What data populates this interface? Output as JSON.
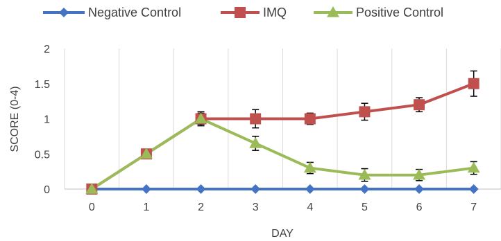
{
  "chart_data": {
    "type": "line",
    "title": "",
    "xlabel": "DAY",
    "ylabel": "SCORE (0-4)",
    "x": [
      0,
      1,
      2,
      3,
      4,
      5,
      6,
      7
    ],
    "x_tick_labels": [
      "0",
      "1",
      "2",
      "3",
      "4",
      "5",
      "6",
      "7"
    ],
    "ylim": [
      0,
      2
    ],
    "y_ticks": [
      0,
      0.5,
      1,
      1.5,
      2
    ],
    "y_tick_labels": [
      "0",
      "0.5",
      "1",
      "1.5",
      "2"
    ],
    "grid": "vertical",
    "legend_position": "top",
    "series": [
      {
        "name": "Negative Control",
        "color": "#4472c4",
        "marker": "diamond",
        "values": [
          0,
          0,
          0,
          0,
          0,
          0,
          0,
          0
        ],
        "errors": [
          0,
          0,
          0,
          0,
          0,
          0,
          0,
          0
        ]
      },
      {
        "name": "IMQ",
        "color": "#c0504d",
        "marker": "square",
        "values": [
          0,
          0.5,
          1.0,
          1.0,
          1.0,
          1.1,
          1.2,
          1.5
        ],
        "errors": [
          0,
          0,
          0.08,
          0.13,
          0.08,
          0.12,
          0.1,
          0.18
        ]
      },
      {
        "name": "Positive Control",
        "color": "#9bbb59",
        "marker": "triangle",
        "values": [
          0,
          0.5,
          1.0,
          0.65,
          0.3,
          0.2,
          0.2,
          0.3
        ],
        "errors": [
          0,
          0,
          0.1,
          0.1,
          0.08,
          0.09,
          0.08,
          0.09
        ]
      }
    ]
  }
}
